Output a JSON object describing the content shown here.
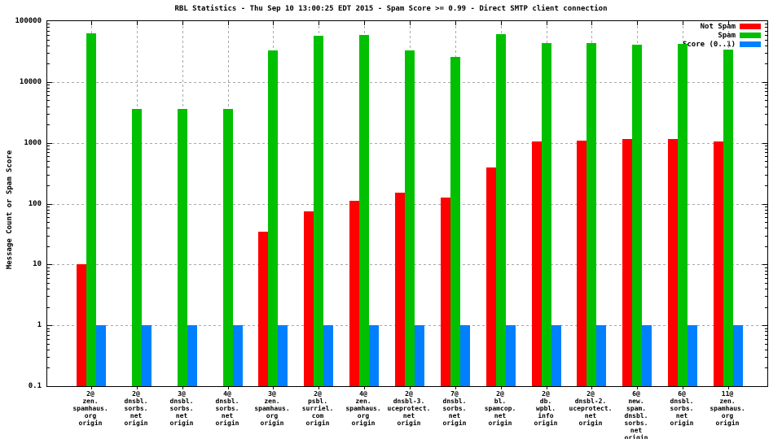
{
  "title": "RBL Statistics - Thu Sep 10 13:00:25 EDT 2015 - Spam Score >= 0.99 - Direct SMTP client connection",
  "ylabel": "Message Count or Spam Score",
  "legend": [
    {
      "label": "Not Spam",
      "color": "#ff0000"
    },
    {
      "label": "Spam",
      "color": "#00c000"
    },
    {
      "label": "Score (0..1)",
      "color": "#0080ff"
    }
  ],
  "chart_data": {
    "type": "bar",
    "title": "RBL Statistics - Thu Sep 10 13:00:25 EDT 2015 - Spam Score >= 0.99 - Direct SMTP client connection",
    "ylabel": "Message Count or Spam Score",
    "xlabel": "",
    "y_scale": "log",
    "ylim": [
      0.1,
      100000
    ],
    "yticks": [
      100000,
      10000,
      1000,
      100,
      10,
      1,
      0.1
    ],
    "grid": true,
    "legend_position": "top-right-inside",
    "categories": [
      [
        "2@",
        "zen.",
        "spamhaus.",
        "org",
        "origin"
      ],
      [
        "2@",
        "dnsbl.",
        "sorbs.",
        "net",
        "origin"
      ],
      [
        "3@",
        "dnsbl.",
        "sorbs.",
        "net",
        "origin"
      ],
      [
        "4@",
        "dnsbl.",
        "sorbs.",
        "net",
        "origin"
      ],
      [
        "3@",
        "zen.",
        "spamhaus.",
        "org",
        "origin"
      ],
      [
        "2@",
        "psbl.",
        "surriel.",
        "com",
        "origin"
      ],
      [
        "4@",
        "zen.",
        "spamhaus.",
        "org",
        "origin"
      ],
      [
        "2@",
        "dnsbl-3.",
        "uceprotect.",
        "net",
        "origin"
      ],
      [
        "7@",
        "dnsbl.",
        "sorbs.",
        "net",
        "origin"
      ],
      [
        "2@",
        "bl.",
        "spamcop.",
        "net",
        "origin"
      ],
      [
        "2@",
        "db.",
        "wpbl.",
        "info",
        "origin"
      ],
      [
        "2@",
        "dnsbl-2.",
        "uceprotect.",
        "net",
        "origin"
      ],
      [
        "6@",
        "new.",
        "spam.",
        "dnsbl.",
        "sorbs.",
        "net",
        "origin"
      ],
      [
        "6@",
        "dnsbl.",
        "sorbs.",
        "net",
        "origin"
      ],
      [
        "11@",
        "zen.",
        "spamhaus.",
        "org",
        "origin"
      ]
    ],
    "series": [
      {
        "name": "Not Spam",
        "color": "#ff0000",
        "values": [
          10,
          0,
          0,
          0,
          35,
          75,
          110,
          150,
          125,
          390,
          1050,
          1100,
          1150,
          1150,
          1050
        ]
      },
      {
        "name": "Spam",
        "color": "#00c000",
        "values": [
          63000,
          3600,
          3600,
          3600,
          33000,
          57000,
          60000,
          33000,
          26000,
          62000,
          44000,
          43000,
          41000,
          42000,
          34000
        ]
      },
      {
        "name": "Score (0..1)",
        "color": "#0080ff",
        "values": [
          1,
          1,
          1,
          1,
          1,
          1,
          1,
          1,
          1,
          1,
          1,
          1,
          1,
          1,
          1
        ]
      }
    ]
  }
}
